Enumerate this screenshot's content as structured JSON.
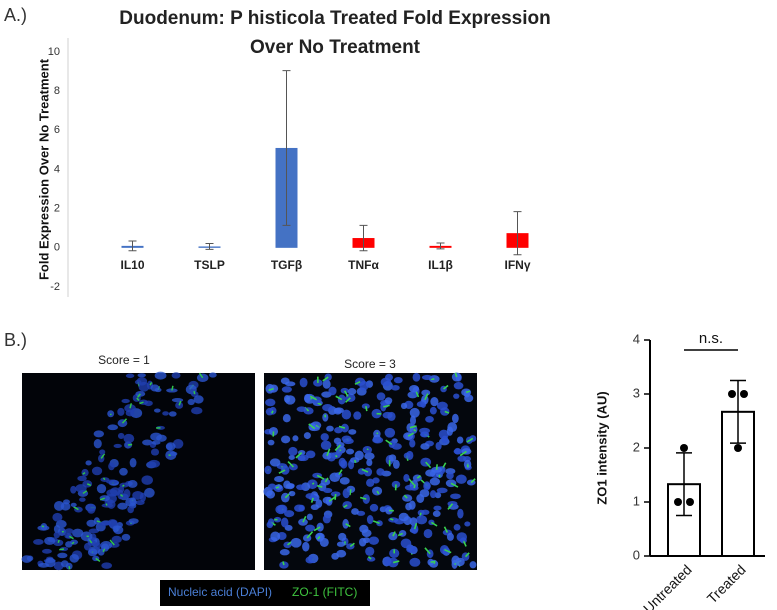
{
  "panel_labels": [
    "A.)",
    "B.)"
  ],
  "images": [
    {
      "caption": "Score = 1"
    },
    {
      "caption": "Score = 3"
    }
  ],
  "legend": [
    "Nucleic acid (DAPI)",
    "ZO-1 (FITC)"
  ],
  "chart_data": [
    {
      "type": "bar",
      "title": "Duodenum:  P histicola Treated Fold Expression Over No Treatment",
      "y_label": "Fold Expression Over No Treatment",
      "categories": [
        "IL10",
        "TSLP",
        "TGFβ",
        "TNFα",
        "IL1β",
        "IFNγ"
      ],
      "values": [
        0.1,
        0.07,
        5.1,
        0.5,
        0.1,
        0.75
      ],
      "errors": [
        0.25,
        0.15,
        3.95,
        0.65,
        0.15,
        1.1
      ],
      "colors": [
        "#4472c4",
        "#4472c4",
        "#4472c4",
        "#ff0000",
        "#ff0000",
        "#ff0000"
      ],
      "ylim": [
        -2,
        10
      ],
      "yticks": [
        -2,
        0,
        2,
        4,
        6,
        8,
        10
      ],
      "grid": false
    },
    {
      "type": "bar",
      "y_label": "ZO1 intensity (AU)",
      "categories": [
        "Untreated",
        "Treated"
      ],
      "values": [
        1.33,
        2.67
      ],
      "errors": [
        0.58,
        0.58
      ],
      "points": [
        [
          2.0,
          1.0,
          1.0
        ],
        [
          3.0,
          3.0,
          2.0
        ]
      ],
      "color": "#ffffff",
      "annotation": "n.s.",
      "ylim": [
        0,
        4
      ],
      "yticks": [
        0,
        1,
        2,
        3,
        4
      ],
      "grid": false
    }
  ]
}
